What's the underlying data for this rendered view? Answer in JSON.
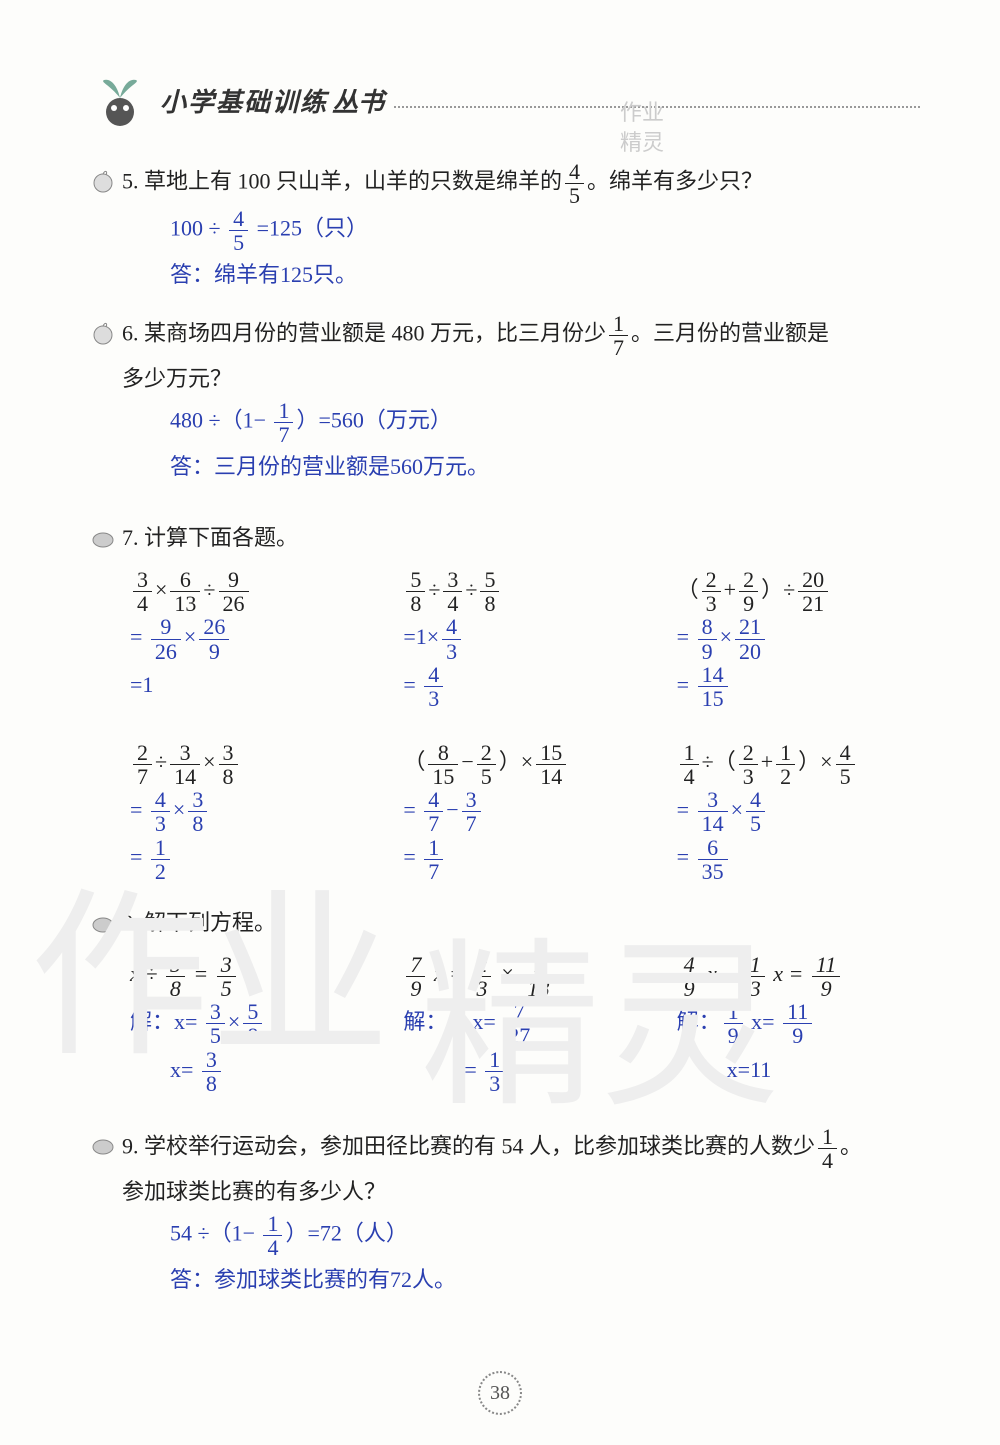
{
  "header": {
    "title": "小学基础训练",
    "subtitle": "丛书"
  },
  "watermark_small": {
    "l1": "作业",
    "l2": "精灵"
  },
  "watermark_big": {
    "a": "作业",
    "b": "精灵"
  },
  "page_number": "38",
  "q5": {
    "num": "5.",
    "text_a": "草地上有 100 只山羊，山羊的只数是绵羊的",
    "frac": {
      "n": "4",
      "d": "5"
    },
    "text_b": "。绵羊有多少只？",
    "ans_eq_a": "100 ÷ ",
    "ans_frac": {
      "n": "4",
      "d": "5"
    },
    "ans_eq_b": " =125（只）",
    "ans2": "答：绵羊有125只。"
  },
  "q6": {
    "num": "6.",
    "text_a": "某商场四月份的营业额是 480 万元，比三月份少",
    "frac": {
      "n": "1",
      "d": "7"
    },
    "text_b": "。三月份的营业额是",
    "text_c": "多少万元？",
    "ans_eq_a": "480 ÷（1− ",
    "ans_frac": {
      "n": "1",
      "d": "7"
    },
    "ans_eq_b": "）=560（万元）",
    "ans2": "答：三月份的营业额是560万元。"
  },
  "q7": {
    "num": "7.",
    "text": "计算下面各题。",
    "c1": {
      "q": [
        [
          "3",
          "4"
        ],
        "×",
        [
          "6",
          "13"
        ],
        "÷",
        [
          "9",
          "26"
        ]
      ],
      "a1": [
        "= ",
        [
          "9",
          "26"
        ],
        "×",
        [
          "26",
          "9"
        ]
      ],
      "a2": "=1"
    },
    "c2": {
      "q": [
        [
          "5",
          "8"
        ],
        "÷",
        [
          "3",
          "4"
        ],
        "÷",
        [
          "5",
          "8"
        ]
      ],
      "a1": [
        "=1×",
        [
          "4",
          "3"
        ]
      ],
      "a2": [
        "= ",
        [
          "4",
          "3"
        ]
      ]
    },
    "c3": {
      "q": [
        "（",
        [
          "2",
          "3"
        ],
        "+",
        [
          "2",
          "9"
        ],
        "）÷",
        [
          "20",
          "21"
        ]
      ],
      "a1": [
        "= ",
        [
          "8",
          "9"
        ],
        "×",
        [
          "21",
          "20"
        ]
      ],
      "a2": [
        "= ",
        [
          "14",
          "15"
        ]
      ]
    },
    "c4": {
      "q": [
        [
          "2",
          "7"
        ],
        "÷",
        [
          "3",
          "14"
        ],
        "×",
        [
          "3",
          "8"
        ]
      ],
      "a1": [
        "= ",
        [
          "4",
          "3"
        ],
        "×",
        [
          "3",
          "8"
        ]
      ],
      "a2": [
        "= ",
        [
          "1",
          "2"
        ]
      ]
    },
    "c5": {
      "q": [
        "（",
        [
          "8",
          "15"
        ],
        "−",
        [
          "2",
          "5"
        ],
        "）×",
        [
          "15",
          "14"
        ]
      ],
      "a1": [
        "= ",
        [
          "4",
          "7"
        ],
        "−",
        [
          "3",
          "7"
        ]
      ],
      "a2": [
        "= ",
        [
          "1",
          "7"
        ]
      ]
    },
    "c6": {
      "q": [
        [
          "1",
          "4"
        ],
        "÷（",
        [
          "2",
          "3"
        ],
        "+",
        [
          "1",
          "2"
        ],
        "）×",
        [
          "4",
          "5"
        ]
      ],
      "a1": [
        "= ",
        [
          "3",
          "14"
        ],
        "×",
        [
          "4",
          "5"
        ]
      ],
      "a2": [
        "= ",
        [
          "6",
          "35"
        ]
      ]
    }
  },
  "q8": {
    "num": "8.",
    "text": "解下列方程。",
    "c1": {
      "q": [
        "x ÷ ",
        [
          "5",
          "8"
        ],
        " = ",
        [
          "3",
          "5"
        ]
      ],
      "a1": [
        "解：x= ",
        [
          "3",
          "5"
        ],
        "×",
        [
          "5",
          "8"
        ]
      ],
      "a2": [
        "x= ",
        [
          "3",
          "8"
        ]
      ]
    },
    "c2": {
      "q": [
        [
          "7",
          "9"
        ],
        " x = ",
        [
          "2",
          "3"
        ],
        " × ",
        [
          "7",
          "18"
        ]
      ],
      "a1": [
        "解：",
        [
          "7",
          "9"
        ],
        "x= ",
        [
          "7",
          "27"
        ]
      ],
      "a2": [
        "x= ",
        [
          "1",
          "3"
        ]
      ]
    },
    "c3": {
      "q": [
        [
          "4",
          "9"
        ],
        " x − ",
        [
          "1",
          "3"
        ],
        " x = ",
        [
          "11",
          "9"
        ]
      ],
      "a1": [
        "解：",
        [
          "1",
          "9"
        ],
        " x= ",
        [
          "11",
          "9"
        ]
      ],
      "a2": "x=11"
    }
  },
  "q9": {
    "num": "9.",
    "text_a": "学校举行运动会，参加田径比赛的有 54 人，比参加球类比赛的人数少",
    "frac": {
      "n": "1",
      "d": "4"
    },
    "text_b": "。",
    "text_c": "参加球类比赛的有多少人？",
    "ans_eq_a": "54 ÷（1− ",
    "ans_frac": {
      "n": "1",
      "d": "4"
    },
    "ans_eq_b": "）=72（人）",
    "ans2": "答：参加球类比赛的有72人。"
  }
}
